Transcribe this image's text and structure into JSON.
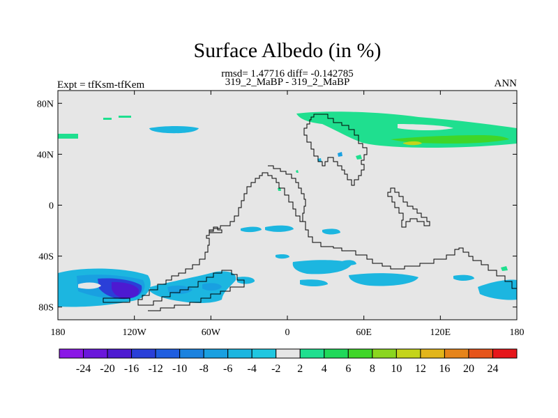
{
  "chart_data": {
    "type": "heatmap",
    "title": "Surface Albedo (in %)",
    "stats_line": "rmsd= 1.47716 diff= -0.142785",
    "case_line": "319_2_MaBP - 319_2_MaBP",
    "left_label": "Expt = tfKsm-tfKem",
    "right_label": "ANN",
    "lon_range": [
      -180,
      180
    ],
    "lat_range": [
      -90,
      90
    ],
    "x_ticks": [
      {
        "value": -180,
        "label": "180"
      },
      {
        "value": -120,
        "label": "120W"
      },
      {
        "value": -60,
        "label": "60W"
      },
      {
        "value": 0,
        "label": "0"
      },
      {
        "value": 60,
        "label": "60E"
      },
      {
        "value": 120,
        "label": "120E"
      },
      {
        "value": 180,
        "label": "180"
      }
    ],
    "y_ticks": [
      {
        "value": 80,
        "label": "80N"
      },
      {
        "value": 40,
        "label": "40N"
      },
      {
        "value": 0,
        "label": "0"
      },
      {
        "value": -40,
        "label": "40S"
      },
      {
        "value": -80,
        "label": "80S"
      }
    ],
    "colorbar": {
      "labels": [
        "-24",
        "-20",
        "-16",
        "-12",
        "-10",
        "-8",
        "-6",
        "-4",
        "-2",
        "2",
        "4",
        "6",
        "8",
        "10",
        "12",
        "16",
        "20",
        "24"
      ],
      "colors": [
        "#8a17e6",
        "#6a17db",
        "#4d1ad1",
        "#2a3fd8",
        "#1f5ee0",
        "#1b82df",
        "#19a0e1",
        "#1cb6e0",
        "#20c7e0",
        "#e6e6e6",
        "#1fdf8f",
        "#1fd95a",
        "#3fd629",
        "#8ad61f",
        "#c4d41a",
        "#e2b51a",
        "#e6841a",
        "#e6541a",
        "#e6161a"
      ]
    },
    "anomaly_regions": [
      {
        "name": "south-pacific-minimum",
        "lon": [
          -178,
          -105
        ],
        "lat": [
          -80,
          -50
        ],
        "peak": -20
      },
      {
        "name": "south-america-south",
        "lon": [
          -100,
          -10
        ],
        "lat": [
          -82,
          -55
        ],
        "peak": -6
      },
      {
        "name": "southern-ocean",
        "lon": [
          10,
          180
        ],
        "lat": [
          -70,
          -45
        ],
        "peak": -4
      },
      {
        "name": "tropical-ocean",
        "lon": [
          -60,
          50
        ],
        "lat": [
          -22,
          -12
        ],
        "peak": -3
      },
      {
        "name": "north-atlantic",
        "lon": [
          -110,
          -70
        ],
        "lat": [
          50,
          55
        ],
        "peak": -3
      },
      {
        "name": "northern-continent",
        "lon": [
          5,
          180
        ],
        "lat": [
          42,
          72
        ],
        "peak": 4
      },
      {
        "name": "northern-continent-core",
        "lon": [
          80,
          160
        ],
        "lat": [
          45,
          52
        ],
        "peak": 8
      }
    ]
  }
}
